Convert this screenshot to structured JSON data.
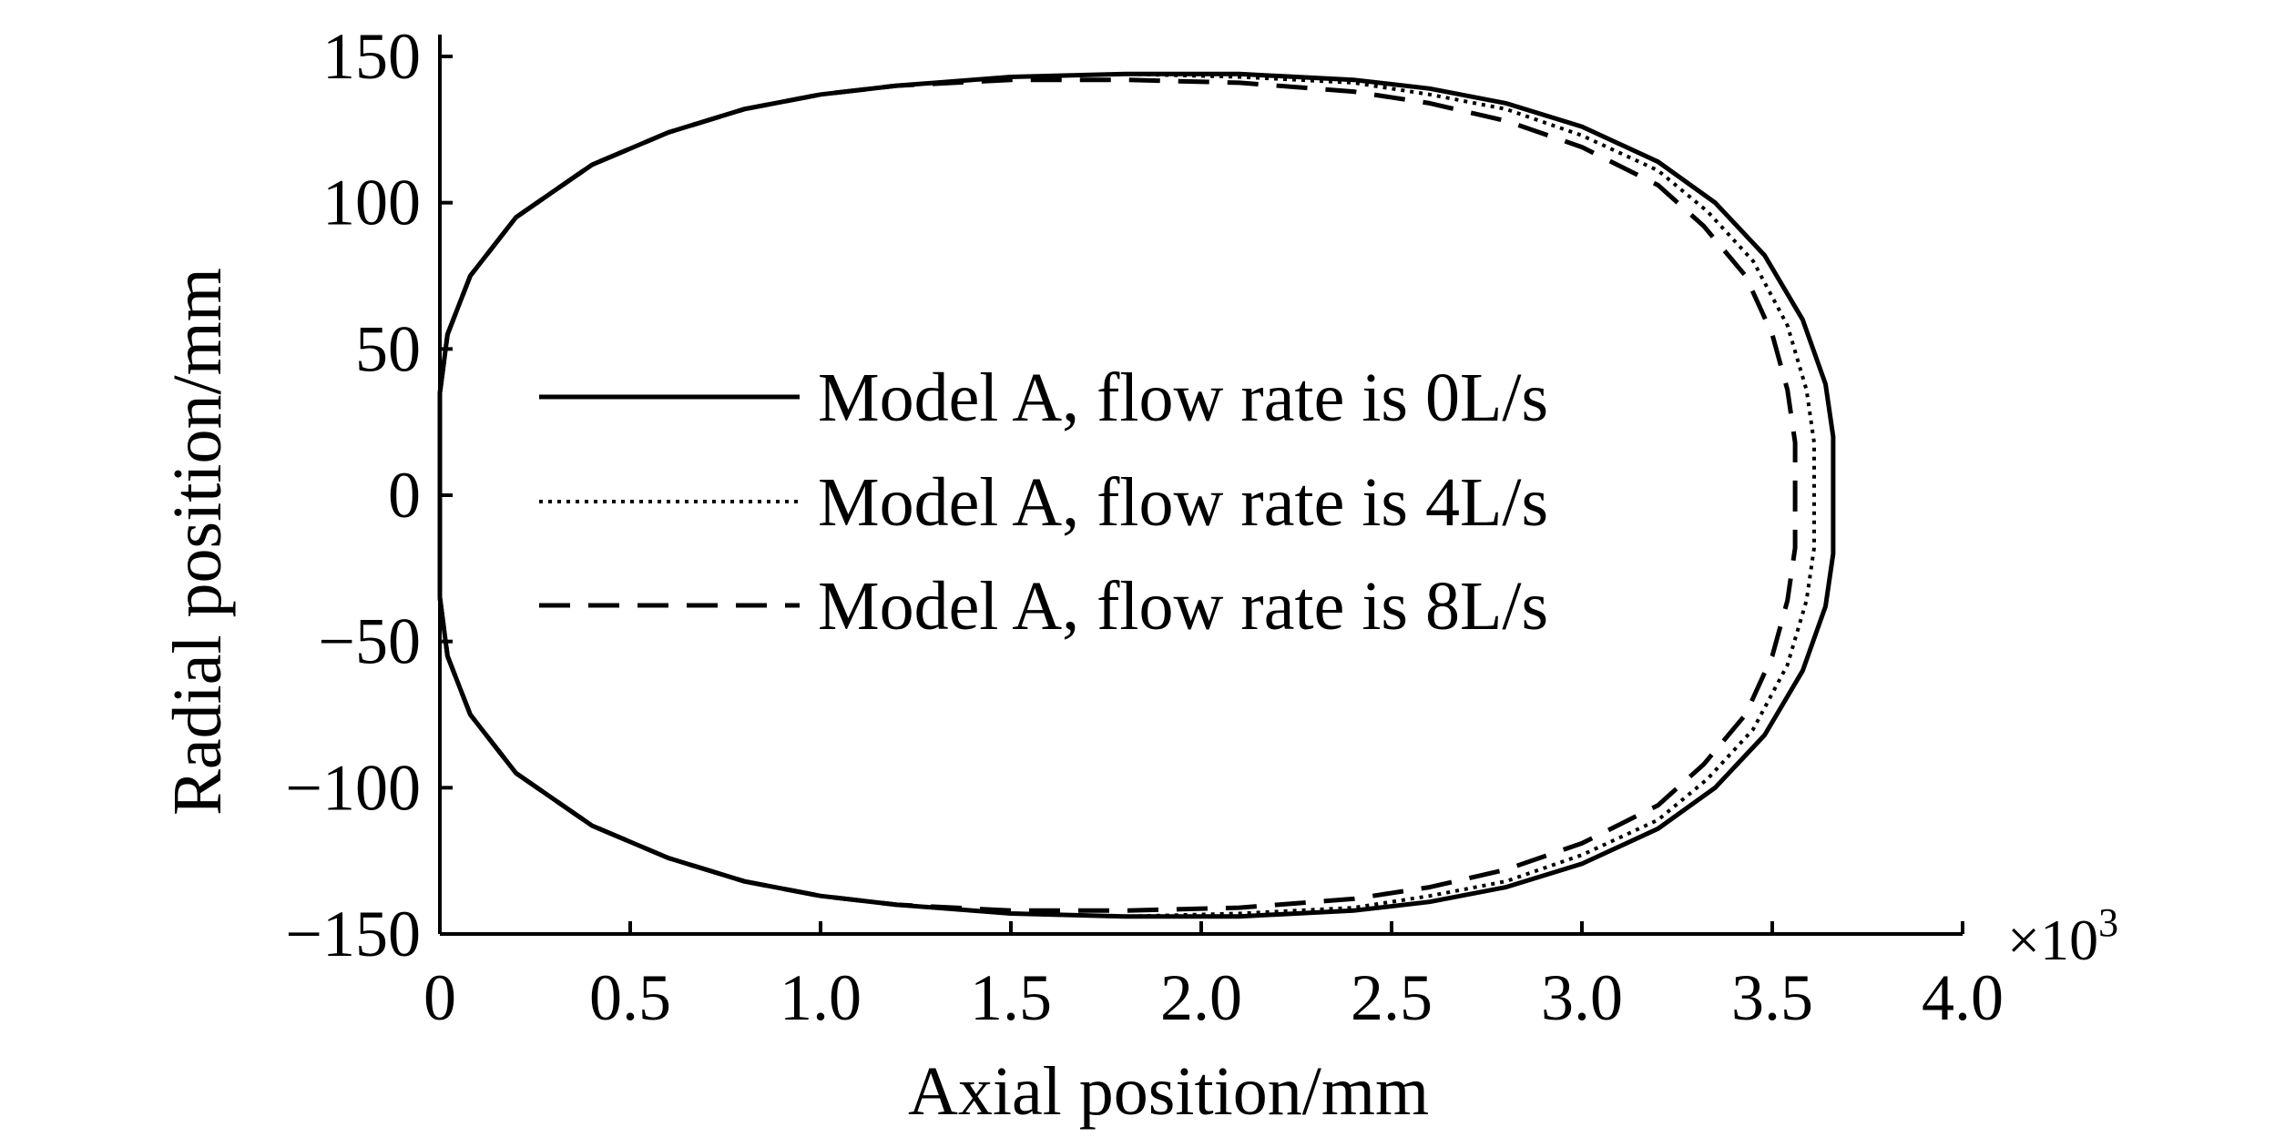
{
  "chart_data": {
    "type": "line",
    "title": "",
    "xlabel": "Axial position/mm",
    "ylabel": "Radial position/mm",
    "x_multiplier_label": "×10",
    "x_multiplier_exponent": "3",
    "xlim": [
      0,
      4.0
    ],
    "ylim": [
      -150,
      150
    ],
    "x_ticks": [
      "0",
      "0.5",
      "1.0",
      "1.5",
      "2.0",
      "2.5",
      "3.0",
      "3.5",
      "4.0"
    ],
    "x_tick_values": [
      0,
      0.5,
      1.0,
      1.5,
      2.0,
      2.5,
      3.0,
      3.5,
      4.0
    ],
    "y_ticks": [
      "150",
      "100",
      "50",
      "0",
      "−50",
      "−100",
      "−150"
    ],
    "y_tick_values": [
      150,
      100,
      50,
      0,
      -50,
      -100,
      -150
    ],
    "grid": false,
    "legend_position": "center-left",
    "series": [
      {
        "name": "Model A, flow rate is 0L/s",
        "style": "solid",
        "color": "#000000",
        "points": [
          [
            0.0,
            -35
          ],
          [
            0.02,
            -55
          ],
          [
            0.08,
            -75
          ],
          [
            0.2,
            -95
          ],
          [
            0.4,
            -113
          ],
          [
            0.6,
            -124
          ],
          [
            0.8,
            -132
          ],
          [
            1.0,
            -137
          ],
          [
            1.2,
            -140
          ],
          [
            1.5,
            -143
          ],
          [
            1.8,
            -144
          ],
          [
            2.1,
            -144
          ],
          [
            2.4,
            -142
          ],
          [
            2.6,
            -139
          ],
          [
            2.8,
            -134
          ],
          [
            3.0,
            -126
          ],
          [
            3.2,
            -114
          ],
          [
            3.35,
            -100
          ],
          [
            3.48,
            -82
          ],
          [
            3.58,
            -60
          ],
          [
            3.64,
            -38
          ],
          [
            3.66,
            -20
          ],
          [
            3.66,
            0
          ],
          [
            3.66,
            20
          ],
          [
            3.64,
            38
          ],
          [
            3.58,
            60
          ],
          [
            3.48,
            82
          ],
          [
            3.35,
            100
          ],
          [
            3.2,
            114
          ],
          [
            3.0,
            126
          ],
          [
            2.8,
            134
          ],
          [
            2.6,
            139
          ],
          [
            2.4,
            142
          ],
          [
            2.1,
            144
          ],
          [
            1.8,
            144
          ],
          [
            1.5,
            143
          ],
          [
            1.2,
            140
          ],
          [
            1.0,
            137
          ],
          [
            0.8,
            132
          ],
          [
            0.6,
            124
          ],
          [
            0.4,
            113
          ],
          [
            0.2,
            95
          ],
          [
            0.08,
            75
          ],
          [
            0.02,
            55
          ],
          [
            0.0,
            35
          ],
          [
            0.0,
            -35
          ]
        ]
      },
      {
        "name": "Model A, flow rate is 4L/s",
        "style": "dotted",
        "color": "#000000",
        "points": [
          [
            0.0,
            -35
          ],
          [
            0.02,
            -55
          ],
          [
            0.08,
            -75
          ],
          [
            0.2,
            -95
          ],
          [
            0.4,
            -113
          ],
          [
            0.6,
            -124
          ],
          [
            0.8,
            -132
          ],
          [
            1.0,
            -137
          ],
          [
            1.2,
            -140
          ],
          [
            1.5,
            -143
          ],
          [
            1.8,
            -144
          ],
          [
            2.1,
            -143
          ],
          [
            2.4,
            -141
          ],
          [
            2.6,
            -137
          ],
          [
            2.8,
            -132
          ],
          [
            3.0,
            -123
          ],
          [
            3.2,
            -111
          ],
          [
            3.33,
            -97
          ],
          [
            3.45,
            -80
          ],
          [
            3.54,
            -58
          ],
          [
            3.59,
            -36
          ],
          [
            3.61,
            -18
          ],
          [
            3.61,
            0
          ],
          [
            3.61,
            18
          ],
          [
            3.59,
            36
          ],
          [
            3.54,
            58
          ],
          [
            3.45,
            80
          ],
          [
            3.33,
            97
          ],
          [
            3.2,
            111
          ],
          [
            3.0,
            123
          ],
          [
            2.8,
            132
          ],
          [
            2.6,
            137
          ],
          [
            2.4,
            141
          ],
          [
            2.1,
            143
          ],
          [
            1.8,
            144
          ],
          [
            1.5,
            143
          ],
          [
            1.2,
            140
          ],
          [
            1.0,
            137
          ],
          [
            0.8,
            132
          ],
          [
            0.6,
            124
          ],
          [
            0.4,
            113
          ],
          [
            0.2,
            95
          ],
          [
            0.08,
            75
          ],
          [
            0.02,
            55
          ],
          [
            0.0,
            35
          ],
          [
            0.0,
            -35
          ]
        ]
      },
      {
        "name": "Model A, flow rate is 8L/s",
        "style": "dashed",
        "color": "#000000",
        "points": [
          [
            0.0,
            -35
          ],
          [
            0.02,
            -55
          ],
          [
            0.08,
            -75
          ],
          [
            0.2,
            -95
          ],
          [
            0.4,
            -113
          ],
          [
            0.6,
            -124
          ],
          [
            0.8,
            -132
          ],
          [
            1.0,
            -137
          ],
          [
            1.2,
            -140
          ],
          [
            1.5,
            -142
          ],
          [
            1.8,
            -142
          ],
          [
            2.1,
            -141
          ],
          [
            2.4,
            -138
          ],
          [
            2.6,
            -134
          ],
          [
            2.8,
            -128
          ],
          [
            3.0,
            -119
          ],
          [
            3.2,
            -106
          ],
          [
            3.32,
            -92
          ],
          [
            3.43,
            -75
          ],
          [
            3.5,
            -55
          ],
          [
            3.54,
            -36
          ],
          [
            3.56,
            -18
          ],
          [
            3.56,
            0
          ],
          [
            3.56,
            18
          ],
          [
            3.54,
            36
          ],
          [
            3.5,
            55
          ],
          [
            3.43,
            75
          ],
          [
            3.32,
            92
          ],
          [
            3.2,
            106
          ],
          [
            3.0,
            119
          ],
          [
            2.8,
            128
          ],
          [
            2.6,
            134
          ],
          [
            2.4,
            138
          ],
          [
            2.1,
            141
          ],
          [
            1.8,
            142
          ],
          [
            1.5,
            142
          ],
          [
            1.2,
            140
          ],
          [
            1.0,
            137
          ],
          [
            0.8,
            132
          ],
          [
            0.6,
            124
          ],
          [
            0.4,
            113
          ],
          [
            0.2,
            95
          ],
          [
            0.08,
            75
          ],
          [
            0.02,
            55
          ],
          [
            0.0,
            35
          ],
          [
            0.0,
            -35
          ]
        ]
      }
    ]
  }
}
